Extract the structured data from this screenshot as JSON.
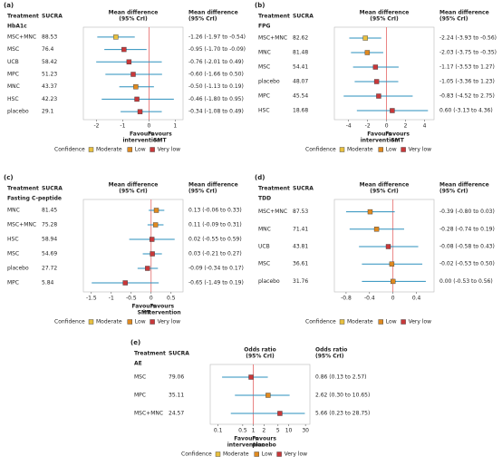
{
  "chart_data": [
    {
      "type": "forest",
      "panel": "(a)",
      "outcome": "HbA1c",
      "col_treatment": "Treatment",
      "col_sucra": "SUCRA",
      "plot_title": [
        "Mean difference",
        "(95% CrI)"
      ],
      "ci_header": [
        "Mean difference",
        "(95% CrI)"
      ],
      "categories": [
        "MSC+MNC",
        "MSC",
        "UCB",
        "MPC",
        "MNC",
        "HSC",
        "placebo"
      ],
      "sucra": [
        88.53,
        76.4,
        58.42,
        51.23,
        43.37,
        42.23,
        29.1
      ],
      "values": [
        -1.26,
        -0.95,
        -0.76,
        -0.6,
        -0.5,
        -0.46,
        -0.34
      ],
      "lower": [
        -1.97,
        -1.7,
        -2.01,
        -1.66,
        -1.13,
        -1.8,
        -1.08
      ],
      "upper": [
        -0.54,
        -0.09,
        0.49,
        0.5,
        0.19,
        0.95,
        0.49
      ],
      "value_labels": [
        "-1.26 (-1.97 to -0.54)",
        "-0.95 (-1.70 to -0.09)",
        "-0.76 (-2.01 to 0.49)",
        "-0.60 (-1.66 to 0.50)",
        "-0.50 (-1.13 to 0.19)",
        "-0.46 (-1.80 to 0.95)",
        "-0.34 (-1.08 to 0.49)"
      ],
      "colors": [
        "#e8c040",
        "#c8383a",
        "#c8383a",
        "#c8383a",
        "#e08a20",
        "#c8383a",
        "#c8383a"
      ],
      "xlim": [
        -2.5,
        1.3
      ],
      "xticks": [
        -2,
        -1,
        0,
        1
      ],
      "log": false,
      "favours_left": [
        "Favours",
        "intervention"
      ],
      "favours_right": [
        "Favours",
        "SMT"
      ],
      "legend_title": "Confidence",
      "legend": [
        {
          "name": "Moderate",
          "color": "#e8c040"
        },
        {
          "name": "Low",
          "color": "#e08a20"
        },
        {
          "name": "Very low",
          "color": "#c8383a"
        }
      ]
    },
    {
      "type": "forest",
      "panel": "(b)",
      "outcome": "FPG",
      "col_treatment": "Treatment",
      "col_sucra": "SUCRA",
      "plot_title": [
        "Mean difference",
        "(95% CrI)"
      ],
      "ci_header": [
        "Mean difference",
        "(95% CrI)"
      ],
      "categories": [
        "MSC+MNC",
        "MNC",
        "MSC",
        "placebo",
        "MPC",
        "HSC"
      ],
      "sucra": [
        82.62,
        81.48,
        54.41,
        48.07,
        45.54,
        18.68
      ],
      "values": [
        -2.24,
        -2.03,
        -1.17,
        -1.05,
        -0.83,
        0.6
      ],
      "lower": [
        -3.93,
        -3.75,
        -3.53,
        -3.36,
        -4.52,
        -3.13
      ],
      "upper": [
        -0.56,
        -0.35,
        1.27,
        1.23,
        2.75,
        4.36
      ],
      "value_labels": [
        "-2.24 (-3.93 to -0.56)",
        "-2.03 (-3.75 to -0.35)",
        "-1.17 (-3.53 to 1.27)",
        "-1.05 (-3.36 to 1.23)",
        "-0.83 (-4.52 to 2.75)",
        "0.60 (-3.13 to 4.36)"
      ],
      "colors": [
        "#e8c040",
        "#e08a20",
        "#c8383a",
        "#c8383a",
        "#c8383a",
        "#c8383a"
      ],
      "xlim": [
        -5.5,
        5
      ],
      "xticks": [
        -4,
        -2,
        0,
        2,
        4
      ],
      "log": false,
      "favours_left": [
        "Favours",
        "intervention"
      ],
      "favours_right": [
        "Favours",
        "SMT"
      ],
      "legend_title": "Confidence",
      "legend": [
        {
          "name": "Moderate",
          "color": "#e8c040"
        },
        {
          "name": "Low",
          "color": "#e08a20"
        },
        {
          "name": "Very low",
          "color": "#c8383a"
        }
      ]
    },
    {
      "type": "forest",
      "panel": "(c)",
      "outcome": "Fasting C-peptide",
      "col_treatment": "Treatment",
      "col_sucra": "SUCRA",
      "plot_title": [
        "Mean difference",
        "(95% CrI)"
      ],
      "ci_header": [
        "Mean difference",
        "(95% CrI)"
      ],
      "categories": [
        "MNC",
        "MSC+MNC",
        "HSC",
        "MSC",
        "placebo",
        "MPC"
      ],
      "sucra": [
        81.45,
        75.28,
        58.94,
        54.69,
        27.72,
        5.84
      ],
      "values": [
        0.13,
        0.11,
        0.02,
        0.03,
        -0.09,
        -0.65
      ],
      "lower": [
        -0.06,
        -0.09,
        -0.55,
        -0.21,
        -0.34,
        -1.49
      ],
      "upper": [
        0.33,
        0.31,
        0.59,
        0.27,
        0.17,
        0.19
      ],
      "value_labels": [
        "0.13 (-0.06 to 0.33)",
        "0.11 (-0.09 to 0.31)",
        "0.02 (-0.55 to 0.59)",
        "0.03 (-0.21 to 0.27)",
        "-0.09 (-0.34 to 0.17)",
        "-0.65 (-1.49 to 0.19)"
      ],
      "colors": [
        "#e08a20",
        "#e08a20",
        "#c8383a",
        "#c8383a",
        "#c8383a",
        "#c8383a"
      ],
      "xlim": [
        -1.7,
        0.8
      ],
      "xticks": [
        -1.5,
        -1,
        -0.5,
        0,
        0.5
      ],
      "log": false,
      "favours_left": [
        "Favours",
        "SMT"
      ],
      "favours_right": [
        "Favours",
        "intervention"
      ],
      "legend_title": "Confidence",
      "legend": [
        {
          "name": "Moderate",
          "color": "#e8c040"
        },
        {
          "name": "Low",
          "color": "#e08a20"
        },
        {
          "name": "Very low",
          "color": "#c8383a"
        }
      ]
    },
    {
      "type": "forest",
      "panel": "(d)",
      "outcome": "TDD",
      "col_treatment": "Treatment",
      "col_sucra": "SUCRA",
      "plot_title": [
        "Mean difference",
        "(95% CrI)"
      ],
      "ci_header": [
        "Mean difference",
        "(95% CrI)"
      ],
      "categories": [
        "MSC+MNC",
        "MNC",
        "UCB",
        "MSC",
        "placebo"
      ],
      "sucra": [
        87.53,
        71.41,
        43.81,
        36.61,
        31.76
      ],
      "values": [
        -0.39,
        -0.28,
        -0.08,
        -0.02,
        0.0
      ],
      "lower": [
        -0.8,
        -0.74,
        -0.58,
        -0.53,
        -0.53
      ],
      "upper": [
        0.03,
        0.19,
        0.43,
        0.5,
        0.56
      ],
      "value_labels": [
        "-0.39 (-0.80 to 0.03)",
        "-0.28 (-0.74 to 0.19)",
        "-0.08 (-0.58 to 0.43)",
        "-0.02 (-0.53 to 0.50)",
        "0.00 (-0.53 to 0.56)"
      ],
      "colors": [
        "#e08a20",
        "#e08a20",
        "#c8383a",
        "#e08a20",
        "#e08a20"
      ],
      "xlim": [
        -1.0,
        0.7
      ],
      "xticks": [
        -0.8,
        -0.4,
        0,
        0.4
      ],
      "log": false,
      "legend_title": "Confidence",
      "legend": [
        {
          "name": "Moderate",
          "color": "#e8c040"
        },
        {
          "name": "Low",
          "color": "#e08a20"
        },
        {
          "name": "Very low",
          "color": "#c8383a"
        }
      ]
    },
    {
      "type": "forest",
      "panel": "(e)",
      "outcome": "AE",
      "col_treatment": "Treatment",
      "col_sucra": "SUCRA",
      "plot_title": [
        "Odds ratio",
        "(95% CrI)"
      ],
      "ci_header": [
        "Odds ratio",
        "(95% CrI)"
      ],
      "categories": [
        "MSC",
        "MPC",
        "MSC+MNC"
      ],
      "sucra": [
        79.06,
        35.11,
        24.57
      ],
      "values": [
        0.86,
        2.62,
        5.66
      ],
      "lower": [
        0.13,
        0.3,
        0.23
      ],
      "upper": [
        2.57,
        10.65,
        28.75
      ],
      "value_labels": [
        "0.86 (0.13 to 2.57)",
        "2.62 (0.30 to 10.65)",
        "5.66 (0.23 to 28.75)"
      ],
      "colors": [
        "#c8383a",
        "#e08a20",
        "#c8383a"
      ],
      "xlim": [
        0.06,
        40
      ],
      "xticks": [
        0.1,
        0.5,
        1,
        2,
        5,
        10,
        30
      ],
      "log": true,
      "favours_left": [
        "Favours",
        "intervention"
      ],
      "favours_right": [
        "Favours",
        "placebo"
      ],
      "legend_title": "Confidence",
      "legend": [
        {
          "name": "Moderate",
          "color": "#e8c040"
        },
        {
          "name": "Low",
          "color": "#e08a20"
        },
        {
          "name": "Very low",
          "color": "#c8383a"
        }
      ]
    }
  ]
}
